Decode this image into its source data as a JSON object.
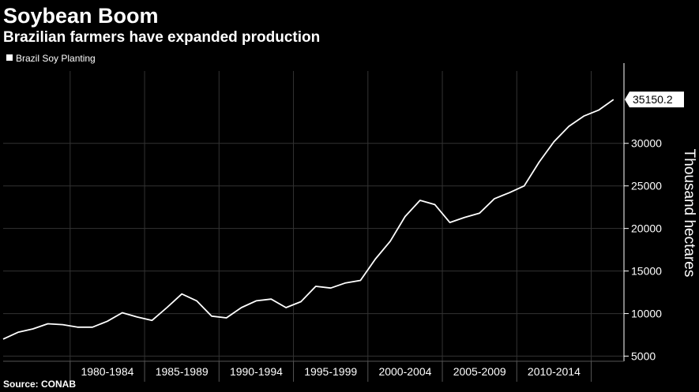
{
  "chart_data": {
    "type": "line",
    "title": "Soybean Boom",
    "subtitle": "Brazilian farmers have expanded production",
    "source": "Source: CONAB",
    "legend": {
      "position": "top-left",
      "entries": [
        "Brazil Soy Planting"
      ]
    },
    "ylabel": "Thousand hectares",
    "grid": true,
    "ylim": [
      4400,
      38500
    ],
    "yticks": [
      5000,
      10000,
      15000,
      20000,
      25000,
      30000
    ],
    "xlim": [
      1976.5,
      2018.2
    ],
    "xticks": [
      {
        "label": "1980-1984",
        "start": 1981,
        "end": 1986
      },
      {
        "label": "1985-1989",
        "start": 1986,
        "end": 1991
      },
      {
        "label": "1990-1994",
        "start": 1991,
        "end": 1996
      },
      {
        "label": "1995-1999",
        "start": 1996,
        "end": 2001
      },
      {
        "label": "2000-2004",
        "start": 2001,
        "end": 2006
      },
      {
        "label": "2005-2009",
        "start": 2006,
        "end": 2011
      },
      {
        "label": "2010-2014",
        "start": 2011,
        "end": 2016
      }
    ],
    "series": [
      {
        "name": "Brazil Soy Planting",
        "color": "#ffffff",
        "x": [
          1976.5,
          1977.5,
          1978.5,
          1979.5,
          1980.5,
          1981.5,
          1982.5,
          1983.5,
          1984.5,
          1985.5,
          1986.5,
          1987.5,
          1988.5,
          1989.5,
          1990.5,
          1991.5,
          1992.5,
          1993.5,
          1994.5,
          1995.5,
          1996.5,
          1997.5,
          1998.5,
          1999.5,
          2000.5,
          2001.5,
          2002.5,
          2003.5,
          2004.5,
          2005.5,
          2006.5,
          2007.5,
          2008.5,
          2009.5,
          2010.5,
          2011.5,
          2012.5,
          2013.5,
          2014.5,
          2015.5,
          2016.5,
          2017.5
        ],
        "values": [
          7000,
          7800,
          8200,
          8800,
          8700,
          8400,
          8400,
          9100,
          10100,
          9600,
          9200,
          10700,
          12300,
          11500,
          9700,
          9500,
          10700,
          11500,
          11700,
          10700,
          11400,
          13200,
          13000,
          13600,
          13900,
          16400,
          18500,
          21400,
          23300,
          22800,
          20700,
          21300,
          21800,
          23500,
          24200,
          25000,
          27800,
          30200,
          32000,
          33200,
          33900,
          35150.2
        ]
      }
    ],
    "last_value_label": "35150.2"
  },
  "colors": {
    "background": "#000000",
    "grid": "#333333",
    "line": "#ffffff",
    "text": "#ffffff"
  }
}
